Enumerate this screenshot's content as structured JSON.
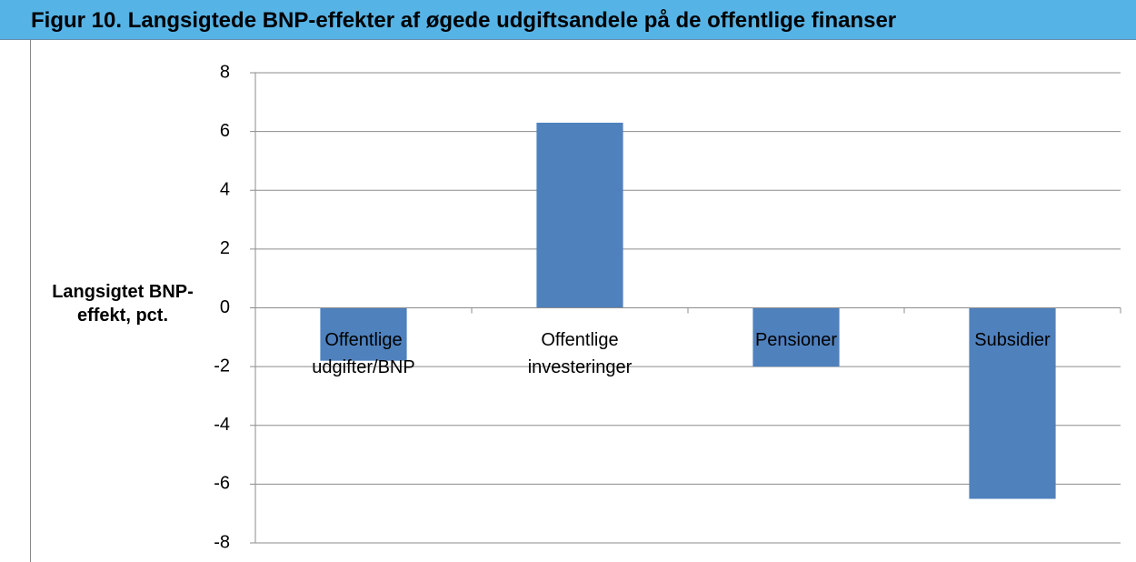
{
  "chart_data": {
    "type": "bar",
    "title": "Figur 10. Langsigtede BNP-effekter af øgede udgiftsandele på de offentlige finanser",
    "y_label": "Langsigtet BNP-effekt, pct.",
    "categories": [
      "Offentlige udgifter/BNP",
      "Offentlige investeringer",
      "Pensioner",
      "Subsidier"
    ],
    "values": [
      -1.8,
      6.3,
      -2.0,
      -6.5
    ],
    "color": "#4f81bd",
    "ylim": [
      -8,
      8
    ],
    "yticks": [
      -8,
      -6,
      -4,
      -2,
      0,
      2,
      4,
      6,
      8
    ],
    "grid": true
  }
}
